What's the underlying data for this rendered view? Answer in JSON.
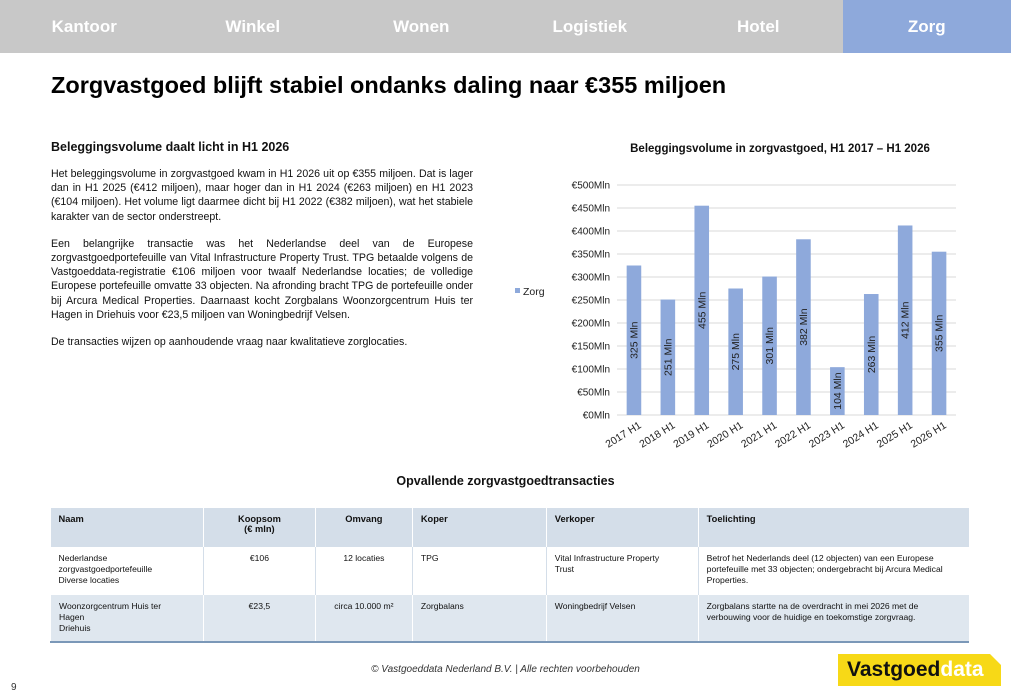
{
  "nav": {
    "tabs": [
      {
        "label": "Kantoor"
      },
      {
        "label": "Winkel"
      },
      {
        "label": "Wonen"
      },
      {
        "label": "Logistiek"
      },
      {
        "label": "Hotel"
      },
      {
        "label": "Zorg"
      }
    ],
    "active": "Zorg",
    "active_color": "#8ea9db"
  },
  "page_title": "Zorgvastgoed blijft stabiel ondanks daling naar €355 miljoen",
  "section": {
    "title": "Beleggingsvolume daalt licht in H1 2026",
    "paragraphs": [
      "Het beleggingsvolume in zorgvastgoed kwam in H1 2026 uit op €355 miljoen. Dat is lager dan in H1 2025 (€412 miljoen), maar hoger dan in H1 2024 (€263 miljoen) en H1 2023 (€104 miljoen). Het volume ligt daarmee dicht bij H1 2022 (€382 miljoen), wat het stabiele karakter van de sector onderstreept.",
      "Een belangrijke transactie was het Nederlandse deel van de Europese zorgvastgoedportefeuille van Vital Infrastructure Property Trust. TPG betaalde volgens de Vastgoeddata-registratie €106 miljoen voor twaalf Nederlandse locaties; de volledige Europese portefeuille omvatte 33 objecten. Na afronding bracht TPG de portefeuille onder bij Arcura Medical Properties. Daarnaast kocht Zorgbalans Woonzorgcentrum Huis ter Hagen in Driehuis voor €23,5 miljoen van Woningbedrijf Velsen.",
      "De transacties wijzen op aanhoudende vraag naar kwalitatieve zorglocaties."
    ]
  },
  "chart_data": {
    "type": "bar",
    "title": "Beleggingsvolume in zorgvastgoed, H1 2017 – H1 2026",
    "categories": [
      "2017 H1",
      "2018 H1",
      "2019 H1",
      "2020 H1",
      "2021 H1",
      "2022 H1",
      "2023 H1",
      "2024 H1",
      "2025 H1",
      "2026 H1"
    ],
    "series": [
      {
        "name": "Zorg",
        "values": [
          325,
          251,
          455,
          275,
          301,
          382,
          104,
          263,
          412,
          355
        ],
        "color": "#8ea9db"
      }
    ],
    "data_labels": [
      "325 Mln",
      "251 Mln",
      "455 Mln",
      "275 Mln",
      "301 Mln",
      "382 Mln",
      "104 Mln",
      "263 Mln",
      "412 Mln",
      "355 Mln"
    ],
    "y_ticks": [
      0,
      50,
      100,
      150,
      200,
      250,
      300,
      350,
      400,
      450,
      500
    ],
    "y_tick_labels": [
      "€0Mln",
      "€50Mln",
      "€100Mln",
      "€150Mln",
      "€200Mln",
      "€250Mln",
      "€300Mln",
      "€350Mln",
      "€400Mln",
      "€450Mln",
      "€500Mln"
    ],
    "ylim": [
      0,
      500
    ],
    "grid": true,
    "legend": "left",
    "xlabel": "",
    "ylabel": ""
  },
  "table": {
    "title": "Opvallende zorgvastgoedtransacties",
    "headers": [
      "Naam",
      "Koopsom\n(€ mln)",
      "Omvang",
      "Koper",
      "Verkoper",
      "Toelichting"
    ],
    "rows": [
      [
        "Nederlandse\nzorgvastgoedportefeuille\nDiverse locaties",
        "€106",
        "12 locaties",
        "TPG",
        "Vital Infrastructure Property\nTrust",
        "Betrof het Nederlands deel (12 objecten) van een Europese portefeuille met 33 objecten; ondergebracht bij Arcura Medical Properties."
      ],
      [
        "Woonzorgcentrum Huis ter\nHagen\nDriehuis",
        "€23,5",
        "circa 10.000 m²",
        "Zorgbalans",
        "Woningbedrijf Velsen",
        "Zorgbalans startte na de overdracht in mei 2026 met de verbouwing voor de huidige en toekomstige zorgvraag."
      ]
    ]
  },
  "footer": {
    "copyright": "© Vastgoeddata Nederland B.V. | Alle rechten voorbehouden",
    "page_number": "9",
    "logo_part1": "Vastgoed",
    "logo_part2": "data",
    "logo_color": "#f7d917"
  }
}
